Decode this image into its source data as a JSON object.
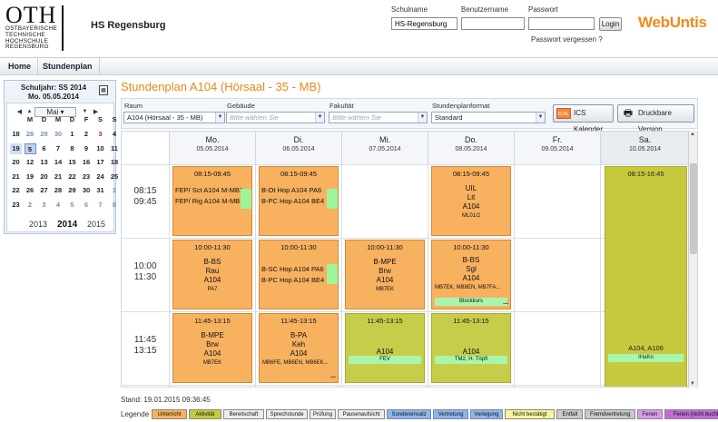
{
  "header": {
    "logo_text": "OTH",
    "logo_sub": [
      "OSTBAYERISCHE",
      "TECHNISCHE",
      "HOCHSCHULE",
      "REGENSBURG"
    ],
    "school": "HS Regensburg",
    "schoolname_label": "Schulname",
    "schoolname_value": "HS-Regensburg",
    "username_label": "Benutzername",
    "password_label": "Passwort",
    "login_label": "Login",
    "forgot_label": "Passwort vergessen ?",
    "brand_a": "Web",
    "brand_b": "Untis",
    "brand_color": "#f08a1c"
  },
  "nav": {
    "items": [
      "Home",
      "Stundenplan"
    ]
  },
  "calendar": {
    "schoolyear": "Schuljahr: SS 2014",
    "date": "Mo. 05.05.2014",
    "month": "Mai",
    "dows": [
      "M",
      "D",
      "M",
      "D",
      "F",
      "S",
      "S"
    ],
    "weeks": [
      {
        "wk": "18",
        "days": [
          "28",
          "29",
          "30",
          "1",
          "2",
          "3",
          "4"
        ]
      },
      {
        "wk": "19",
        "days": [
          "5",
          "6",
          "7",
          "8",
          "9",
          "10",
          "11"
        ]
      },
      {
        "wk": "20",
        "days": [
          "12",
          "13",
          "14",
          "15",
          "16",
          "17",
          "18"
        ]
      },
      {
        "wk": "21",
        "days": [
          "19",
          "20",
          "21",
          "22",
          "23",
          "24",
          "25"
        ]
      },
      {
        "wk": "22",
        "days": [
          "26",
          "27",
          "28",
          "29",
          "30",
          "31",
          "1"
        ]
      },
      {
        "wk": "23",
        "days": [
          "2",
          "3",
          "4",
          "5",
          "6",
          "7",
          "8"
        ]
      }
    ],
    "years": [
      "2013",
      "2014",
      "2015"
    ]
  },
  "main": {
    "title": "Stundenplan A104 (Hörsaal - 35 - MB)",
    "filters": {
      "raum_label": "Raum",
      "raum_value": "A104 (Hörsaal - 35 - MB)",
      "gebaeude_label": "Gebäude",
      "gebaeude_ph": "Bitte wählen Sie",
      "fakultaet_label": "Fakultät",
      "fakultaet_ph": "Bitte wählen Sie",
      "format_label": "Stundenplanformat",
      "format_value": "Standard"
    },
    "ics_label": "ICS Kalender",
    "ics_icon": "ICAL",
    "print_label": "Druckbare Version"
  },
  "days": [
    {
      "name": "Mo.",
      "date": "05.05.2014"
    },
    {
      "name": "Di.",
      "date": "06.05.2014"
    },
    {
      "name": "Mi.",
      "date": "07.05.2014"
    },
    {
      "name": "Do.",
      "date": "08.05.2014"
    },
    {
      "name": "Fr.",
      "date": "09.05.2014"
    },
    {
      "name": "Sa.",
      "date": "10.05.2014"
    }
  ],
  "times": [
    {
      "a": "08:15",
      "b": "09:45"
    },
    {
      "a": "10:00",
      "b": "11:30"
    },
    {
      "a": "11:45",
      "b": "13:15"
    }
  ],
  "lessons": {
    "mo1": {
      "time": "08:15-09:45",
      "l1": "FEP/ Sct  A104 M-MB1",
      "l2": "FEP/ Rig  A104 M-MB1"
    },
    "di1": {
      "time": "08:15-09:45",
      "l1": "B-Ot Hop  A104 PA6",
      "l2": "B-PC Hop  A104 BE4"
    },
    "do1": {
      "time": "08:15-09:45",
      "l1": "UIL",
      "l2": "Lit",
      "l3": "A104",
      "l4": "ML01/2"
    },
    "sa1": {
      "time": "08:15-16:45",
      "room": "A104, A106",
      "tag": "IHaKo"
    },
    "mo2": {
      "time": "10:00-11:30",
      "l1": "B-BS",
      "l2": "Rau",
      "l3": "A104",
      "l4": "PA7"
    },
    "di2": {
      "time": "10:00-11:30",
      "l1": "B-SC Hop  A104 PA6",
      "l2": "B-PC Hop  A104 BE4"
    },
    "mi2": {
      "time": "10:00-11:30",
      "l1": "B-MPE",
      "l2": "Brw",
      "l3": "A104",
      "l4": "MB7EK"
    },
    "do2": {
      "time": "10:00-11:30",
      "l1": "B-BS",
      "l2": "Sgl",
      "l3": "A104",
      "l4": "MB7EK, MB8EN, MB7FA...",
      "tag": "Blockkurs"
    },
    "mo3": {
      "time": "11:45-13:15",
      "l1": "B-MPE",
      "l2": "Brw",
      "l3": "A104",
      "l4": "MB7EK"
    },
    "di3": {
      "time": "11:45-13:15",
      "l1": "B-PA",
      "l2": "Keh",
      "l3": "A104",
      "l4": "MB6FE, MB6EN, MB6EK..."
    },
    "mi3": {
      "time": "11:45-13:15",
      "l3": "A104",
      "tag": "FEV"
    },
    "do3": {
      "time": "11:45-13:15",
      "l3": "A104",
      "tag": "TM2, H. Töpfl"
    }
  },
  "footer": {
    "stand": "Stand: 19.01.2015 09:36:45",
    "legend_label": "Legende",
    "legend": [
      {
        "label": "Unterricht",
        "color": "#f7b15f"
      },
      {
        "label": "Aktivität",
        "color": "#c6ca3e"
      },
      {
        "label": "Bereitschaft",
        "color": "#ececec"
      },
      {
        "label": "Sprechstunde",
        "color": "#ececec"
      },
      {
        "label": "Prüfung",
        "color": "#ececec"
      },
      {
        "label": "Pausenaufsicht",
        "color": "#ececec"
      },
      {
        "label": "Sondereinsatz",
        "color": "#8db4ee"
      },
      {
        "label": "Vertretung",
        "color": "#8db4ee"
      },
      {
        "label": "Verlegung",
        "color": "#8db4ee"
      },
      {
        "label": "Nicht bestätigt",
        "color": "#f5f59a"
      },
      {
        "label": "Entfall",
        "color": "#c8c8c8"
      },
      {
        "label": "Fremdvertretung",
        "color": "#c8c8c8"
      },
      {
        "label": "Ferien",
        "color": "#d99ae8"
      },
      {
        "label": "Ferien (nicht buchbar)",
        "color": "#c06bd6"
      }
    ]
  }
}
